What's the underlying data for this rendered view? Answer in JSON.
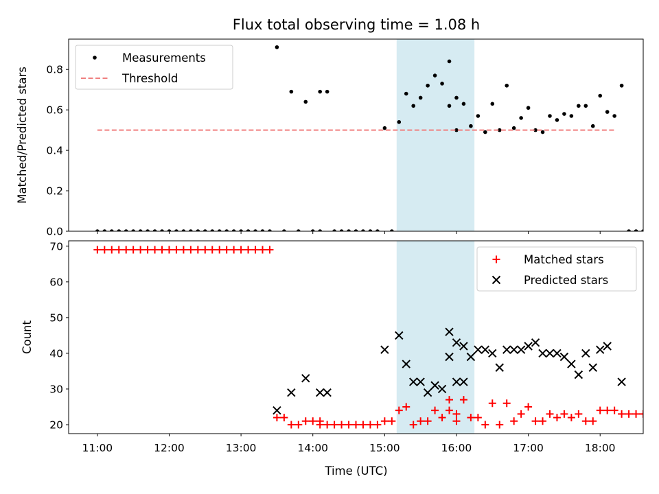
{
  "chart_data": [
    {
      "type": "scatter",
      "title": "Flux total observing time = 1.08 h",
      "xlabel": "",
      "ylabel": "Matched/Predicted stars",
      "xlim": [
        "10:36",
        "18:36"
      ],
      "ylim": [
        0,
        0.95
      ],
      "x_ticks": [
        "11:00",
        "12:00",
        "13:00",
        "14:00",
        "15:00",
        "16:00",
        "17:00",
        "18:00"
      ],
      "y_ticks": [
        "0.0",
        "0.2",
        "0.4",
        "0.6",
        "0.8"
      ],
      "y_tick_values": [
        0,
        0.2,
        0.4,
        0.6,
        0.8
      ],
      "highlight_span": [
        "15:10",
        "16:15"
      ],
      "legend_position": "upper-left",
      "series": [
        {
          "name": "Measurements",
          "color": "#000000",
          "marker": "dot",
          "points": [
            [
              "11:00",
              0
            ],
            [
              "11:06",
              0
            ],
            [
              "11:12",
              0
            ],
            [
              "11:18",
              0
            ],
            [
              "11:24",
              0
            ],
            [
              "11:30",
              0
            ],
            [
              "11:36",
              0
            ],
            [
              "11:42",
              0
            ],
            [
              "11:48",
              0
            ],
            [
              "11:54",
              0
            ],
            [
              "12:00",
              0
            ],
            [
              "12:06",
              0
            ],
            [
              "12:12",
              0
            ],
            [
              "12:18",
              0
            ],
            [
              "12:24",
              0
            ],
            [
              "12:30",
              0
            ],
            [
              "12:36",
              0
            ],
            [
              "12:42",
              0
            ],
            [
              "12:48",
              0
            ],
            [
              "12:54",
              0
            ],
            [
              "13:00",
              0
            ],
            [
              "13:06",
              0
            ],
            [
              "13:12",
              0
            ],
            [
              "13:18",
              0
            ],
            [
              "13:24",
              0
            ],
            [
              "13:30",
              0.91
            ],
            [
              "13:36",
              0
            ],
            [
              "13:42",
              0.69
            ],
            [
              "13:48",
              0
            ],
            [
              "13:54",
              0.64
            ],
            [
              "14:00",
              0
            ],
            [
              "14:06",
              0
            ],
            [
              "14:06",
              0.69
            ],
            [
              "14:12",
              0.69
            ],
            [
              "14:18",
              0
            ],
            [
              "14:24",
              0
            ],
            [
              "14:30",
              0
            ],
            [
              "14:36",
              0
            ],
            [
              "14:42",
              0
            ],
            [
              "14:48",
              0
            ],
            [
              "14:54",
              0
            ],
            [
              "15:00",
              0.51
            ],
            [
              "15:06",
              0
            ],
            [
              "15:12",
              0.54
            ],
            [
              "15:18",
              0.68
            ],
            [
              "15:24",
              0.62
            ],
            [
              "15:30",
              0.66
            ],
            [
              "15:36",
              0.72
            ],
            [
              "15:42",
              0.77
            ],
            [
              "15:48",
              0.73
            ],
            [
              "15:54",
              0.62
            ],
            [
              "16:00",
              0.66
            ],
            [
              "15:54",
              0.84
            ],
            [
              "16:00",
              0.5
            ],
            [
              "16:06",
              0.63
            ],
            [
              "16:12",
              0.52
            ],
            [
              "16:18",
              0.57
            ],
            [
              "16:24",
              0.49
            ],
            [
              "16:30",
              0.63
            ],
            [
              "16:36",
              0.5
            ],
            [
              "16:42",
              0.72
            ],
            [
              "16:48",
              0.51
            ],
            [
              "16:54",
              0.56
            ],
            [
              "17:00",
              0.61
            ],
            [
              "17:06",
              0.5
            ],
            [
              "17:12",
              0.49
            ],
            [
              "17:18",
              0.57
            ],
            [
              "17:24",
              0.55
            ],
            [
              "17:30",
              0.58
            ],
            [
              "17:36",
              0.57
            ],
            [
              "17:42",
              0.62
            ],
            [
              "17:48",
              0.62
            ],
            [
              "17:54",
              0.52
            ],
            [
              "18:00",
              0.67
            ],
            [
              "18:06",
              0.59
            ],
            [
              "18:12",
              0.57
            ],
            [
              "18:18",
              0.72
            ],
            [
              "18:24",
              0
            ],
            [
              "18:30",
              0
            ],
            [
              "18:36",
              0
            ]
          ]
        },
        {
          "name": "Threshold",
          "color": "#f08080",
          "style": "dashed",
          "points": [
            [
              "11:00",
              0.5
            ],
            [
              "18:12",
              0.5
            ]
          ]
        }
      ]
    },
    {
      "type": "scatter",
      "title": "",
      "xlabel": "Time (UTC)",
      "ylabel": "Count",
      "xlim": [
        "10:36",
        "18:36"
      ],
      "ylim": [
        17.5,
        71.5
      ],
      "x_ticks": [
        "11:00",
        "12:00",
        "13:00",
        "14:00",
        "15:00",
        "16:00",
        "17:00",
        "18:00"
      ],
      "y_ticks": [
        "20",
        "30",
        "40",
        "50",
        "60",
        "70"
      ],
      "y_tick_values": [
        20,
        30,
        40,
        50,
        60,
        70
      ],
      "highlight_span": [
        "15:10",
        "16:15"
      ],
      "legend_position": "upper-right",
      "series": [
        {
          "name": "Matched stars",
          "color": "#ff0000",
          "marker": "plus",
          "points": [
            [
              "11:00",
              69
            ],
            [
              "11:06",
              69
            ],
            [
              "11:12",
              69
            ],
            [
              "11:18",
              69
            ],
            [
              "11:24",
              69
            ],
            [
              "11:30",
              69
            ],
            [
              "11:36",
              69
            ],
            [
              "11:42",
              69
            ],
            [
              "11:48",
              69
            ],
            [
              "11:54",
              69
            ],
            [
              "12:00",
              69
            ],
            [
              "12:06",
              69
            ],
            [
              "12:12",
              69
            ],
            [
              "12:18",
              69
            ],
            [
              "12:24",
              69
            ],
            [
              "12:30",
              69
            ],
            [
              "12:36",
              69
            ],
            [
              "12:42",
              69
            ],
            [
              "12:48",
              69
            ],
            [
              "12:54",
              69
            ],
            [
              "13:00",
              69
            ],
            [
              "13:06",
              69
            ],
            [
              "13:12",
              69
            ],
            [
              "13:18",
              69
            ],
            [
              "13:24",
              69
            ],
            [
              "13:30",
              22
            ],
            [
              "13:36",
              22
            ],
            [
              "13:42",
              20
            ],
            [
              "13:48",
              20
            ],
            [
              "13:54",
              21
            ],
            [
              "14:00",
              21
            ],
            [
              "14:06",
              21
            ],
            [
              "14:06",
              20
            ],
            [
              "14:12",
              20
            ],
            [
              "14:18",
              20
            ],
            [
              "14:24",
              20
            ],
            [
              "14:30",
              20
            ],
            [
              "14:36",
              20
            ],
            [
              "14:42",
              20
            ],
            [
              "14:48",
              20
            ],
            [
              "14:54",
              20
            ],
            [
              "15:00",
              21
            ],
            [
              "15:06",
              21
            ],
            [
              "15:12",
              24
            ],
            [
              "15:18",
              25
            ],
            [
              "15:24",
              20
            ],
            [
              "15:30",
              21
            ],
            [
              "15:36",
              21
            ],
            [
              "15:42",
              24
            ],
            [
              "15:48",
              22
            ],
            [
              "15:54",
              24
            ],
            [
              "16:00",
              21
            ],
            [
              "15:54",
              27
            ],
            [
              "16:00",
              23
            ],
            [
              "16:06",
              27
            ],
            [
              "16:12",
              22
            ],
            [
              "16:18",
              22
            ],
            [
              "16:24",
              20
            ],
            [
              "16:30",
              26
            ],
            [
              "16:36",
              20
            ],
            [
              "16:42",
              26
            ],
            [
              "16:48",
              21
            ],
            [
              "16:54",
              23
            ],
            [
              "17:00",
              25
            ],
            [
              "17:06",
              21
            ],
            [
              "17:12",
              21
            ],
            [
              "17:18",
              23
            ],
            [
              "17:24",
              22
            ],
            [
              "17:30",
              23
            ],
            [
              "17:36",
              22
            ],
            [
              "17:42",
              23
            ],
            [
              "17:48",
              21
            ],
            [
              "17:54",
              21
            ],
            [
              "18:00",
              24
            ],
            [
              "18:06",
              24
            ],
            [
              "18:12",
              24
            ],
            [
              "18:18",
              23
            ],
            [
              "18:24",
              23
            ],
            [
              "18:30",
              23
            ],
            [
              "18:36",
              23
            ]
          ]
        },
        {
          "name": "Predicted stars",
          "color": "#000000",
          "marker": "x",
          "points": [
            [
              "13:30",
              24
            ],
            [
              "13:42",
              29
            ],
            [
              "13:54",
              33
            ],
            [
              "14:06",
              29
            ],
            [
              "14:12",
              29
            ],
            [
              "15:00",
              41
            ],
            [
              "15:12",
              45
            ],
            [
              "15:18",
              37
            ],
            [
              "15:24",
              32
            ],
            [
              "15:30",
              32
            ],
            [
              "15:36",
              29
            ],
            [
              "15:42",
              31
            ],
            [
              "15:48",
              30
            ],
            [
              "15:54",
              39
            ],
            [
              "16:00",
              32
            ],
            [
              "16:06",
              32
            ],
            [
              "15:54",
              46
            ],
            [
              "16:00",
              43
            ],
            [
              "16:06",
              42
            ],
            [
              "16:12",
              39
            ],
            [
              "16:18",
              41
            ],
            [
              "16:24",
              41
            ],
            [
              "16:30",
              40
            ],
            [
              "16:36",
              36
            ],
            [
              "16:42",
              41
            ],
            [
              "16:48",
              41
            ],
            [
              "16:54",
              41
            ],
            [
              "17:00",
              42
            ],
            [
              "17:06",
              43
            ],
            [
              "17:12",
              40
            ],
            [
              "17:18",
              40
            ],
            [
              "17:24",
              40
            ],
            [
              "17:30",
              39
            ],
            [
              "17:36",
              37
            ],
            [
              "17:42",
              34
            ],
            [
              "17:48",
              40
            ],
            [
              "17:54",
              36
            ],
            [
              "18:00",
              41
            ],
            [
              "18:06",
              42
            ],
            [
              "18:18",
              32
            ]
          ]
        }
      ]
    }
  ]
}
